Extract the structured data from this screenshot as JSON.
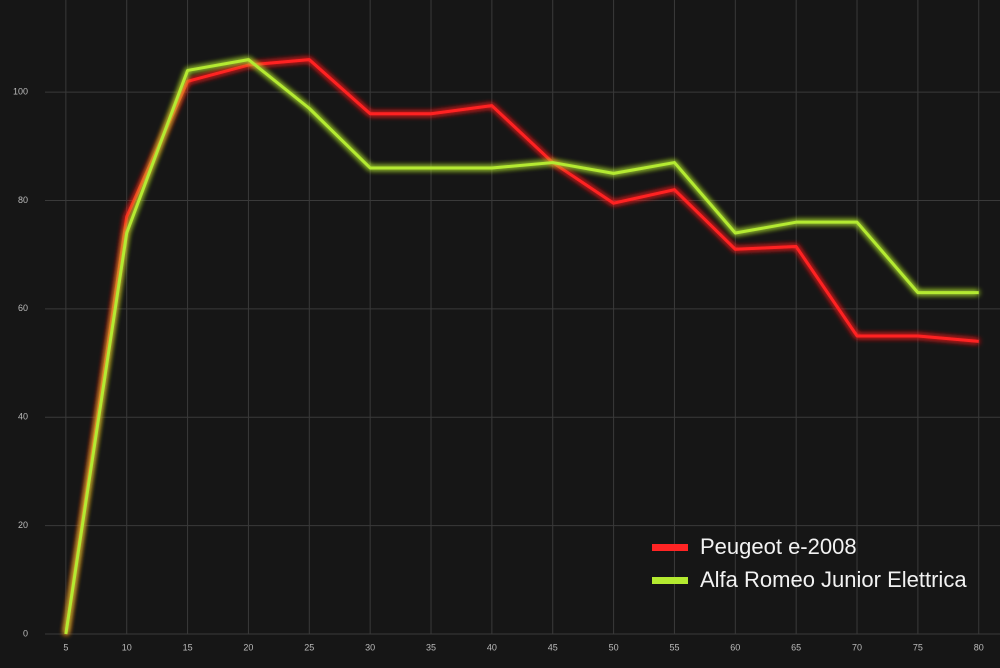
{
  "chart_data": {
    "type": "line",
    "x": [
      5,
      10,
      15,
      20,
      25,
      30,
      35,
      40,
      45,
      50,
      55,
      60,
      65,
      70,
      75,
      80
    ],
    "xlim": [
      0,
      81.5
    ],
    "xticks": [
      5,
      10,
      15,
      20,
      25,
      30,
      35,
      40,
      45,
      50,
      55,
      60,
      65,
      70,
      75,
      80
    ],
    "ylim": [
      0,
      117
    ],
    "yticks": [
      0,
      20,
      40,
      60,
      80,
      100
    ],
    "grid": true,
    "legend": "lower right",
    "series": [
      {
        "name": "Peugeot e-2008",
        "color": "#ff2424",
        "values": [
          0,
          77,
          102,
          105,
          106,
          96,
          96,
          97.5,
          87,
          79.5,
          82,
          71,
          71.5,
          55,
          55,
          54
        ]
      },
      {
        "name": "Alfa Romeo Junior Elettrica",
        "color": "#b4ea30",
        "values": [
          0,
          74,
          104,
          106,
          97,
          86,
          86,
          86,
          87,
          85,
          87,
          74,
          76,
          76,
          63,
          63
        ]
      }
    ]
  }
}
